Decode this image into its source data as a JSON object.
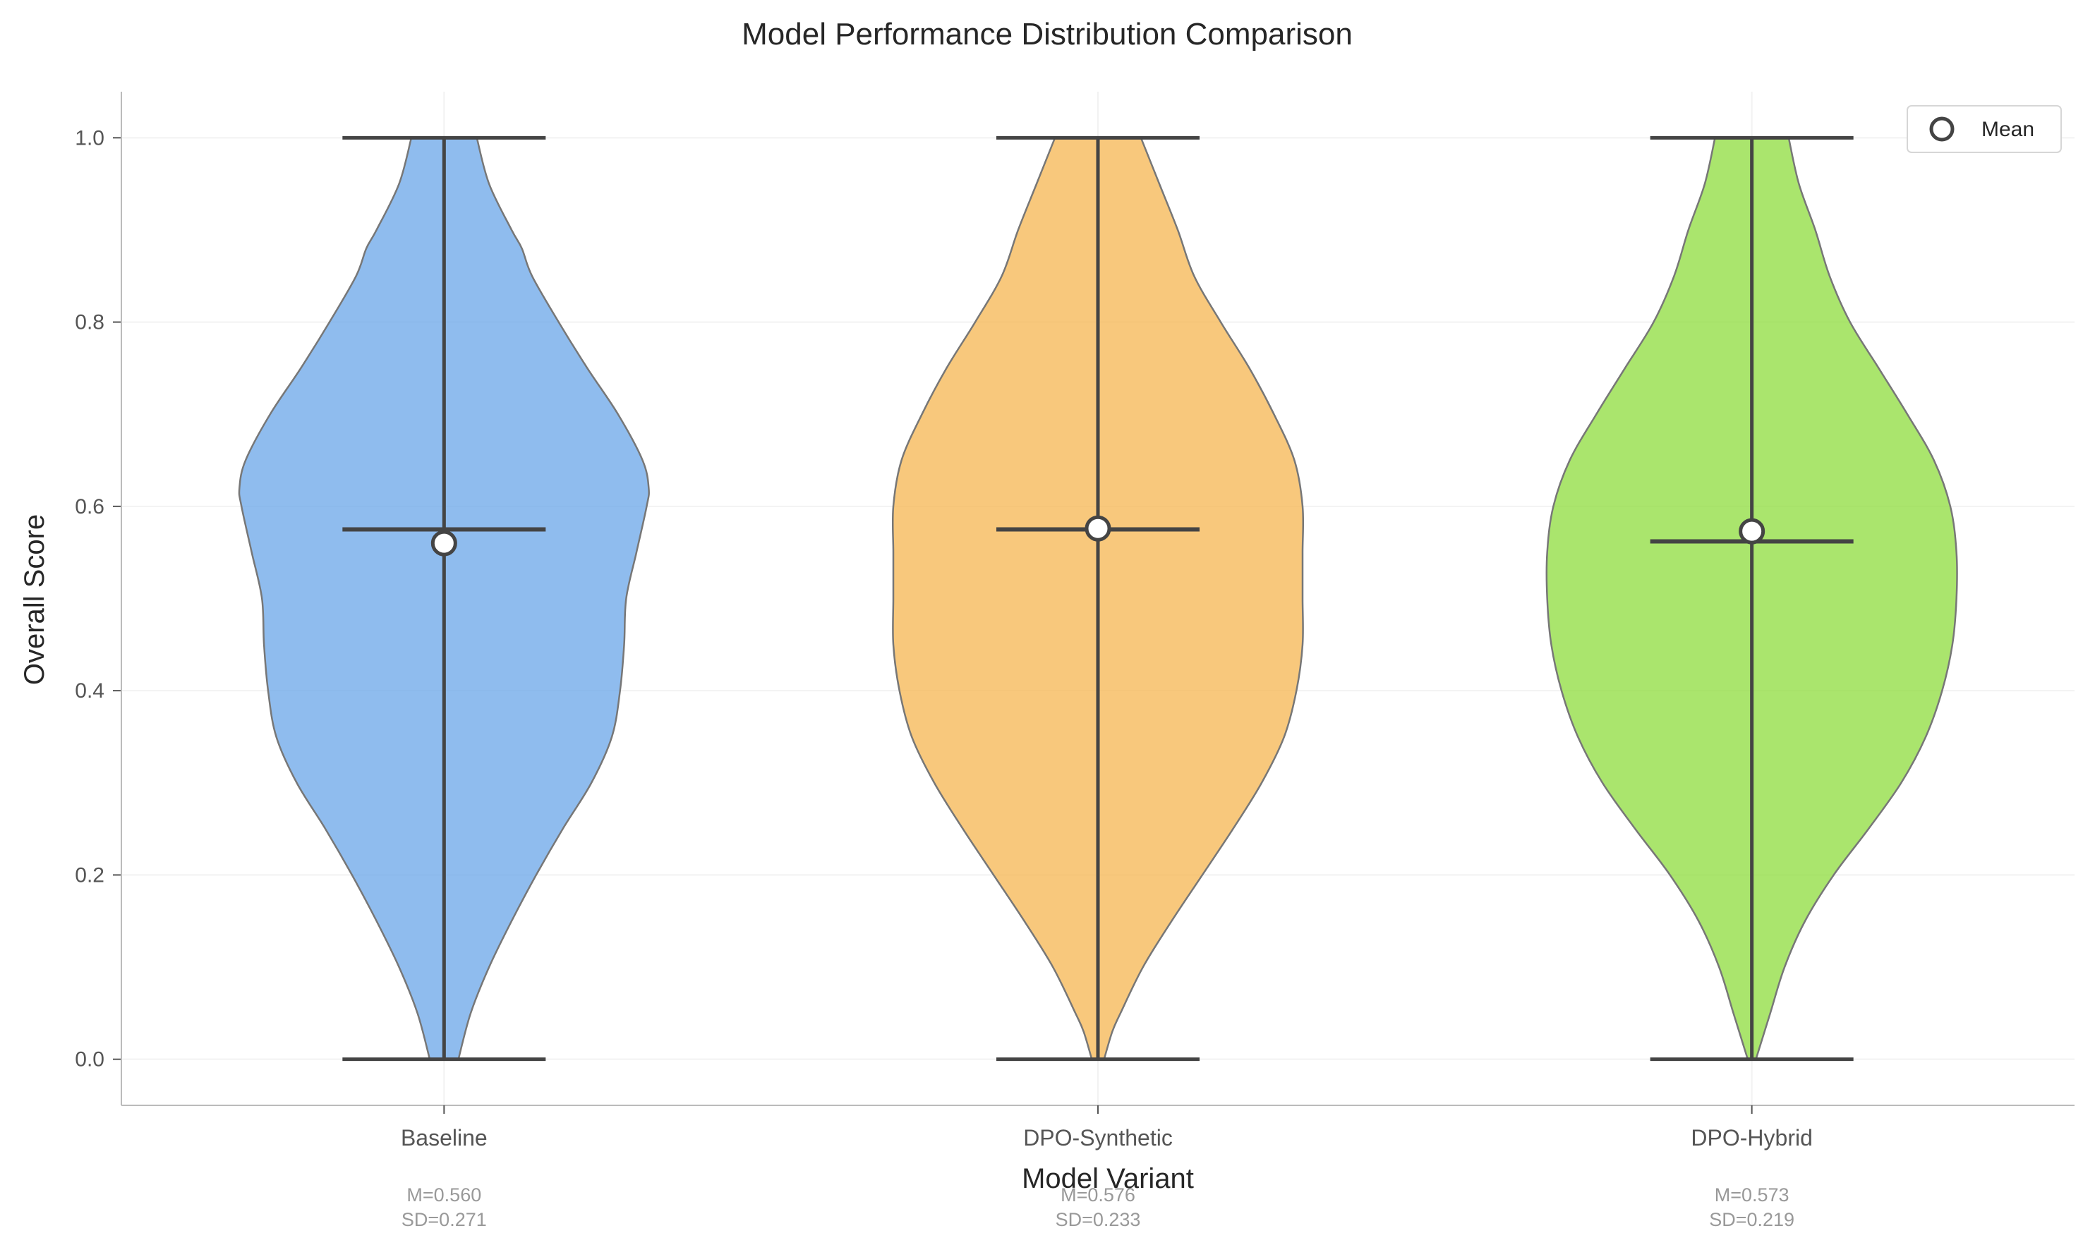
{
  "chart_data": {
    "type": "violin",
    "title": "Model Performance Distribution Comparison",
    "xlabel": "Model Variant",
    "ylabel": "Overall Score",
    "ylim": [
      -0.05,
      1.05
    ],
    "yticks": [
      "0.0",
      "0.2",
      "0.4",
      "0.6",
      "0.8",
      "1.0"
    ],
    "ytick_values": [
      0.0,
      0.2,
      0.4,
      0.6,
      0.8,
      1.0
    ],
    "grid": true,
    "legend": {
      "placement": "top-right",
      "entries": [
        {
          "label": "Mean",
          "marker": "hollow-circle"
        }
      ]
    },
    "categories": [
      "Baseline",
      "DPO-Synthetic",
      "DPO-Hybrid"
    ],
    "series": [
      {
        "category": "Baseline",
        "color": "#6aa5e8",
        "min": 0.0,
        "max": 1.0,
        "median": 0.575,
        "mean": 0.56,
        "mean_label": "M=0.560",
        "sd_label": "SD=0.271",
        "density": [
          [
            0.0,
            0.07
          ],
          [
            0.05,
            0.13
          ],
          [
            0.1,
            0.22
          ],
          [
            0.15,
            0.33
          ],
          [
            0.2,
            0.45
          ],
          [
            0.25,
            0.58
          ],
          [
            0.3,
            0.72
          ],
          [
            0.35,
            0.82
          ],
          [
            0.4,
            0.86
          ],
          [
            0.45,
            0.88
          ],
          [
            0.5,
            0.89
          ],
          [
            0.55,
            0.94
          ],
          [
            0.6,
            0.99
          ],
          [
            0.62,
            1.0
          ],
          [
            0.65,
            0.97
          ],
          [
            0.7,
            0.85
          ],
          [
            0.75,
            0.7
          ],
          [
            0.8,
            0.56
          ],
          [
            0.85,
            0.43
          ],
          [
            0.88,
            0.38
          ],
          [
            0.9,
            0.33
          ],
          [
            0.95,
            0.22
          ],
          [
            1.0,
            0.16
          ]
        ]
      },
      {
        "category": "DPO-Synthetic",
        "color": "#f5b550",
        "min": 0.0,
        "max": 1.0,
        "median": 0.575,
        "mean": 0.576,
        "mean_label": "M=0.576",
        "sd_label": "SD=0.233",
        "density": [
          [
            0.0,
            0.03
          ],
          [
            0.03,
            0.07
          ],
          [
            0.05,
            0.11
          ],
          [
            0.1,
            0.22
          ],
          [
            0.15,
            0.36
          ],
          [
            0.2,
            0.51
          ],
          [
            0.25,
            0.66
          ],
          [
            0.3,
            0.8
          ],
          [
            0.35,
            0.91
          ],
          [
            0.4,
            0.97
          ],
          [
            0.45,
            1.0
          ],
          [
            0.5,
            1.0
          ],
          [
            0.55,
            1.0
          ],
          [
            0.6,
            1.0
          ],
          [
            0.65,
            0.96
          ],
          [
            0.7,
            0.86
          ],
          [
            0.75,
            0.74
          ],
          [
            0.8,
            0.6
          ],
          [
            0.85,
            0.47
          ],
          [
            0.9,
            0.39
          ],
          [
            0.95,
            0.3
          ],
          [
            1.0,
            0.21
          ]
        ]
      },
      {
        "category": "DPO-Hybrid",
        "color": "#8edc3c",
        "min": 0.0,
        "max": 1.0,
        "median": 0.562,
        "mean": 0.573,
        "mean_label": "M=0.573",
        "sd_label": "SD=0.219",
        "density": [
          [
            0.0,
            0.02
          ],
          [
            0.05,
            0.09
          ],
          [
            0.1,
            0.16
          ],
          [
            0.15,
            0.26
          ],
          [
            0.2,
            0.4
          ],
          [
            0.25,
            0.57
          ],
          [
            0.3,
            0.73
          ],
          [
            0.35,
            0.85
          ],
          [
            0.4,
            0.93
          ],
          [
            0.45,
            0.98
          ],
          [
            0.5,
            1.0
          ],
          [
            0.55,
            1.0
          ],
          [
            0.6,
            0.97
          ],
          [
            0.65,
            0.89
          ],
          [
            0.7,
            0.76
          ],
          [
            0.75,
            0.62
          ],
          [
            0.8,
            0.48
          ],
          [
            0.85,
            0.38
          ],
          [
            0.9,
            0.31
          ],
          [
            0.95,
            0.23
          ],
          [
            1.0,
            0.18
          ]
        ]
      }
    ]
  }
}
